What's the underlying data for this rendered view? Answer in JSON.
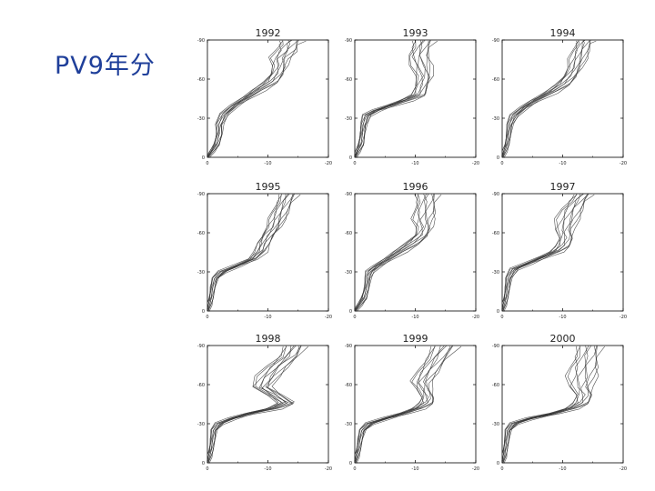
{
  "slide": {
    "title": "PV9年分"
  },
  "colors": {
    "title": "#1f3f9a",
    "curve": "#333333",
    "axis": "#000000"
  },
  "chart_data": [
    {
      "type": "line",
      "title": "1992",
      "xlim": [
        0,
        -20
      ],
      "ylim": [
        0,
        -90
      ],
      "xticks": [
        {
          "v": 0,
          "label": "0"
        },
        {
          "v": -10,
          "label": "-10"
        },
        {
          "v": -20,
          "label": "-20"
        }
      ],
      "yticks": [
        {
          "v": 0,
          "label": "0"
        },
        {
          "v": -30,
          "label": "-30"
        },
        {
          "v": -60,
          "label": "-60"
        },
        {
          "v": -90,
          "label": "-90"
        }
      ],
      "shape": {
        "y": [
          0,
          -5,
          -10,
          -18,
          -25,
          -33,
          -40,
          -46,
          -52,
          -58,
          -64,
          -70,
          -76,
          -82,
          -87,
          -90
        ],
        "x": [
          0,
          -0.8,
          -1.5,
          -2,
          -2,
          -2.8,
          -4.5,
          -6.5,
          -8.5,
          -10.5,
          -11.5,
          -12,
          -12,
          -13,
          -13.5,
          -14
        ],
        "spread": [
          0.2,
          0.3,
          0.4,
          0.5,
          0.5,
          0.5,
          0.6,
          0.7,
          0.8,
          0.9,
          1,
          1.1,
          1.2,
          1.4,
          1.5,
          1.6
        ]
      }
    },
    {
      "type": "line",
      "title": "1993",
      "xlim": [
        0,
        -20
      ],
      "ylim": [
        0,
        -90
      ],
      "xticks": [
        {
          "v": 0,
          "label": "0"
        },
        {
          "v": -10,
          "label": "-10"
        },
        {
          "v": -20,
          "label": "-20"
        }
      ],
      "yticks": [
        {
          "v": 0,
          "label": "0"
        },
        {
          "v": -30,
          "label": "-30"
        },
        {
          "v": -60,
          "label": "-60"
        },
        {
          "v": -90,
          "label": "-90"
        }
      ],
      "shape": {
        "y": [
          0,
          -5,
          -10,
          -18,
          -25,
          -32,
          -36,
          -40,
          -44,
          -48,
          -55,
          -62,
          -70,
          -78,
          -85,
          -90
        ],
        "x": [
          0,
          -0.5,
          -1,
          -1.3,
          -1.5,
          -2,
          -3.5,
          -6,
          -8.5,
          -10.5,
          -11,
          -11.5,
          -11,
          -10.5,
          -11,
          -11.5
        ],
        "spread": [
          0.2,
          0.3,
          0.4,
          0.4,
          0.4,
          0.5,
          0.6,
          0.7,
          0.8,
          0.9,
          1,
          1.2,
          1.3,
          1.3,
          1.4,
          1.5
        ]
      }
    },
    {
      "type": "line",
      "title": "1994",
      "xlim": [
        0,
        -20
      ],
      "ylim": [
        0,
        -90
      ],
      "xticks": [
        {
          "v": 0,
          "label": "0"
        },
        {
          "v": -10,
          "label": "-10"
        },
        {
          "v": -20,
          "label": "-20"
        }
      ],
      "yticks": [
        {
          "v": 0,
          "label": "0"
        },
        {
          "v": -30,
          "label": "-30"
        },
        {
          "v": -60,
          "label": "-60"
        },
        {
          "v": -90,
          "label": "-90"
        }
      ],
      "shape": {
        "y": [
          0,
          -5,
          -10,
          -18,
          -25,
          -32,
          -38,
          -44,
          -50,
          -56,
          -62,
          -68,
          -75,
          -82,
          -88,
          -90
        ],
        "x": [
          0,
          -0.4,
          -0.8,
          -1.1,
          -1.3,
          -2,
          -3.5,
          -5.5,
          -8,
          -10,
          -11.2,
          -12,
          -12.5,
          -13,
          -13.5,
          -13.8
        ],
        "spread": [
          0.2,
          0.3,
          0.3,
          0.4,
          0.4,
          0.5,
          0.6,
          0.7,
          0.8,
          0.9,
          1,
          1,
          1.1,
          1.1,
          1.2,
          1.2
        ]
      }
    },
    {
      "type": "line",
      "title": "1995",
      "xlim": [
        0,
        -20
      ],
      "ylim": [
        0,
        -90
      ],
      "xticks": [
        {
          "v": 0,
          "label": "0"
        },
        {
          "v": -10,
          "label": "-10"
        },
        {
          "v": -20,
          "label": "-20"
        }
      ],
      "yticks": [
        {
          "v": 0,
          "label": "0"
        },
        {
          "v": -30,
          "label": "-30"
        },
        {
          "v": -60,
          "label": "-60"
        },
        {
          "v": -90,
          "label": "-90"
        }
      ],
      "shape": {
        "y": [
          0,
          -5,
          -10,
          -18,
          -25,
          -30,
          -35,
          -40,
          -46,
          -52,
          -58,
          -64,
          -70,
          -76,
          -84,
          -90
        ],
        "x": [
          0,
          -0.3,
          -0.6,
          -0.9,
          -1.3,
          -2.5,
          -5,
          -7.5,
          -8.8,
          -9.3,
          -10,
          -11,
          -11.5,
          -12,
          -12.8,
          -13.5
        ],
        "spread": [
          0.2,
          0.3,
          0.3,
          0.4,
          0.4,
          0.5,
          0.6,
          0.7,
          0.8,
          0.8,
          0.9,
          1,
          1,
          1.1,
          1.2,
          1.3
        ]
      }
    },
    {
      "type": "line",
      "title": "1996",
      "xlim": [
        0,
        -20
      ],
      "ylim": [
        0,
        -90
      ],
      "xticks": [
        {
          "v": 0,
          "label": "0"
        },
        {
          "v": -10,
          "label": "-10"
        },
        {
          "v": -20,
          "label": "-20"
        }
      ],
      "yticks": [
        {
          "v": 0,
          "label": "0"
        },
        {
          "v": -30,
          "label": "-30"
        },
        {
          "v": -60,
          "label": "-60"
        },
        {
          "v": -90,
          "label": "-90"
        }
      ],
      "shape": {
        "y": [
          0,
          -5,
          -10,
          -18,
          -25,
          -30,
          -34,
          -40,
          -46,
          -52,
          -58,
          -64,
          -70,
          -76,
          -84,
          -90
        ],
        "x": [
          0,
          -0.8,
          -1.5,
          -2,
          -2.2,
          -2.5,
          -3.5,
          -5.5,
          -7.5,
          -9.5,
          -11,
          -11.5,
          -11.3,
          -11.5,
          -11.8,
          -12
        ],
        "spread": [
          0.2,
          0.3,
          0.4,
          0.4,
          0.4,
          0.5,
          0.6,
          0.7,
          0.8,
          0.9,
          1,
          1.2,
          1.3,
          1.4,
          1.5,
          1.6
        ]
      }
    },
    {
      "type": "line",
      "title": "1997",
      "xlim": [
        0,
        -20
      ],
      "ylim": [
        0,
        -90
      ],
      "xticks": [
        {
          "v": 0,
          "label": "0"
        },
        {
          "v": -10,
          "label": "-10"
        },
        {
          "v": -20,
          "label": "-20"
        }
      ],
      "yticks": [
        {
          "v": 0,
          "label": "0"
        },
        {
          "v": -30,
          "label": "-30"
        },
        {
          "v": -60,
          "label": "-60"
        },
        {
          "v": -90,
          "label": "-90"
        }
      ],
      "shape": {
        "y": [
          0,
          -5,
          -10,
          -18,
          -25,
          -32,
          -37,
          -42,
          -46,
          -50,
          -56,
          -62,
          -70,
          -78,
          -85,
          -90
        ],
        "x": [
          0,
          -0.3,
          -0.6,
          -0.9,
          -1.1,
          -2,
          -4.5,
          -7,
          -9,
          -10,
          -10.5,
          -10.3,
          -10.8,
          -11.5,
          -12.5,
          -13.5
        ],
        "spread": [
          0.2,
          0.3,
          0.3,
          0.4,
          0.4,
          0.5,
          0.6,
          0.7,
          0.8,
          0.9,
          1.1,
          1.3,
          1.4,
          1.4,
          1.3,
          1.2
        ]
      }
    },
    {
      "type": "line",
      "title": "1998",
      "xlim": [
        0,
        -20
      ],
      "ylim": [
        0,
        -90
      ],
      "xticks": [
        {
          "v": 0,
          "label": "0"
        },
        {
          "v": -10,
          "label": "-10"
        },
        {
          "v": -20,
          "label": "-20"
        }
      ],
      "yticks": [
        {
          "v": 0,
          "label": "0"
        },
        {
          "v": -30,
          "label": "-30"
        },
        {
          "v": -60,
          "label": "-60"
        },
        {
          "v": -90,
          "label": "-90"
        }
      ],
      "shape": {
        "y": [
          0,
          -5,
          -10,
          -18,
          -25,
          -30,
          -34,
          -38,
          -42,
          -46,
          -52,
          -58,
          -66,
          -74,
          -82,
          -90
        ],
        "x": [
          0,
          -0.3,
          -0.6,
          -0.9,
          -1.1,
          -2,
          -4,
          -7,
          -11,
          -13,
          -11,
          -9,
          -10,
          -11.5,
          -13.5,
          -14.5
        ],
        "spread": [
          0.2,
          0.3,
          0.3,
          0.4,
          0.4,
          0.5,
          0.6,
          0.7,
          0.9,
          1,
          1.2,
          1.3,
          1.4,
          1.4,
          1.5,
          1.5
        ]
      }
    },
    {
      "type": "line",
      "title": "1999",
      "xlim": [
        0,
        -20
      ],
      "ylim": [
        0,
        -90
      ],
      "xticks": [
        {
          "v": 0,
          "label": "0"
        },
        {
          "v": -10,
          "label": "-10"
        },
        {
          "v": -20,
          "label": "-20"
        }
      ],
      "yticks": [
        {
          "v": 0,
          "label": "0"
        },
        {
          "v": -30,
          "label": "-30"
        },
        {
          "v": -60,
          "label": "-60"
        },
        {
          "v": -90,
          "label": "-90"
        }
      ],
      "shape": {
        "y": [
          0,
          -5,
          -10,
          -18,
          -25,
          -30,
          -34,
          -38,
          -42,
          -46,
          -50,
          -56,
          -62,
          -70,
          -80,
          -90
        ],
        "x": [
          0,
          -0.3,
          -0.6,
          -0.9,
          -1.3,
          -2.5,
          -5,
          -8,
          -10.5,
          -11.8,
          -12,
          -11.5,
          -11,
          -12,
          -13.5,
          -15
        ],
        "spread": [
          0.2,
          0.3,
          0.3,
          0.4,
          0.4,
          0.5,
          0.6,
          0.7,
          0.8,
          0.9,
          1,
          1.1,
          1.2,
          1.4,
          1.6,
          1.8
        ]
      }
    },
    {
      "type": "line",
      "title": "2000",
      "xlim": [
        0,
        -20
      ],
      "ylim": [
        0,
        -90
      ],
      "xticks": [
        {
          "v": 0,
          "label": "0"
        },
        {
          "v": -10,
          "label": "-10"
        },
        {
          "v": -20,
          "label": "-20"
        }
      ],
      "yticks": [
        {
          "v": 0,
          "label": "0"
        },
        {
          "v": -30,
          "label": "-30"
        },
        {
          "v": -60,
          "label": "-60"
        },
        {
          "v": -90,
          "label": "-90"
        }
      ],
      "shape": {
        "y": [
          0,
          -5,
          -10,
          -18,
          -25,
          -30,
          -34,
          -38,
          -42,
          -46,
          -52,
          -58,
          -66,
          -74,
          -82,
          -90
        ],
        "x": [
          0,
          -0.3,
          -0.5,
          -0.8,
          -1,
          -2,
          -4.5,
          -8.5,
          -11.5,
          -13,
          -13.5,
          -13,
          -13.2,
          -13.5,
          -14,
          -14.5
        ],
        "spread": [
          0.2,
          0.3,
          0.3,
          0.4,
          0.4,
          0.5,
          0.6,
          0.7,
          0.8,
          1,
          1.3,
          1.6,
          1.8,
          1.8,
          1.8,
          1.7
        ]
      }
    }
  ]
}
